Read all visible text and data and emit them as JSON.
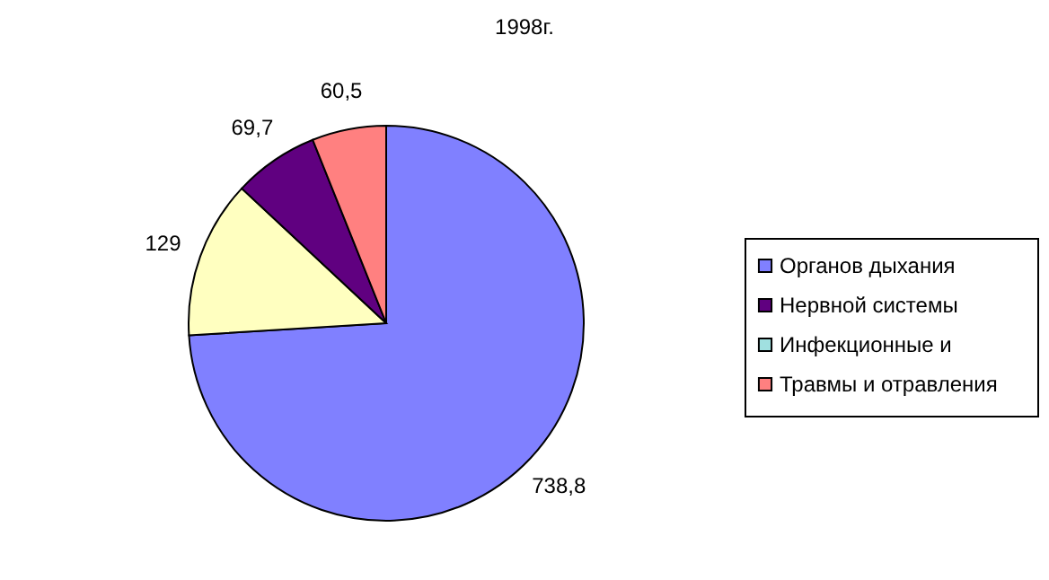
{
  "chart_data": {
    "type": "pie",
    "title": "1998г.",
    "categories": [
      "Органов дыхания",
      null,
      "Нервной системы",
      "Инфекционные и",
      "Травмы и отравления"
    ],
    "values": [
      738.8,
      129,
      69.7,
      null,
      60.5
    ],
    "colors": [
      "#8080ff",
      "#ffffc0",
      "#600080",
      "#a0e0e0",
      "#ff8080"
    ],
    "value_labels": [
      "738,8",
      "129",
      "69,7",
      null,
      "60,5"
    ],
    "legend": "right"
  }
}
